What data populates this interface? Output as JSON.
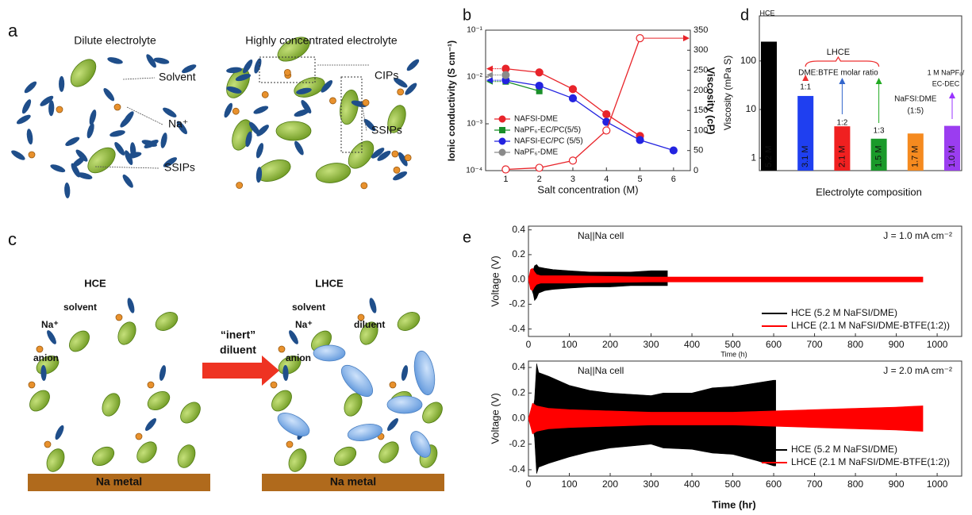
{
  "diagram_a": {
    "label": "a",
    "titles": [
      "Dilute electrolyte",
      "Highly concentrated electrolyte"
    ],
    "labels": [
      "Solvent",
      "Na⁺",
      "SSIPs",
      "CIPs",
      "SSIPs"
    ]
  },
  "diagram_c": {
    "label": "c",
    "titles": [
      "HCE",
      "LHCE"
    ],
    "left_labels": [
      "solvent",
      "Na⁺",
      "anion"
    ],
    "right_labels": [
      "solvent",
      "Na⁺",
      "diluent",
      "anion"
    ],
    "arrow_label": [
      "“inert”",
      "diluent"
    ],
    "substrate": [
      "Na metal",
      "Na metal"
    ]
  },
  "chart_data": [
    {
      "type": "line",
      "panel": "b",
      "xlabel": "Salt concentration (M)",
      "ylabel": "Ionic conductivity (S cm⁻¹)",
      "y2label": "Viscosity (cP)",
      "ylog": true,
      "x": [
        1,
        2,
        3,
        4,
        5,
        6
      ],
      "xlim": [
        0.4,
        6.5
      ],
      "xticks": [
        1,
        2,
        3,
        4,
        5,
        6
      ],
      "ylim": [
        0.0001,
        0.1
      ],
      "yticks": [
        {
          "value": 0.0001,
          "label": "10⁻⁴"
        },
        {
          "value": 0.001,
          "label": "10⁻³"
        },
        {
          "value": 0.01,
          "label": "10⁻²"
        },
        {
          "value": 0.1,
          "label": "10⁻¹"
        }
      ],
      "y2lim": [
        0,
        350
      ],
      "y2ticks": [
        0,
        50,
        100,
        150,
        200,
        250,
        300,
        350
      ],
      "series": [
        {
          "name": "NAFSI-DME",
          "color": "#e8242a",
          "marker": "circle",
          "values": [
            0.015,
            0.0125,
            0.0055,
            0.0016,
            0.00055,
            null
          ]
        },
        {
          "name": "NaPF₆-EC/PC(5/5)",
          "color": "#1a8f2a",
          "marker": "square",
          "values": [
            0.008,
            0.005,
            null,
            null,
            null,
            null
          ]
        },
        {
          "name": "NAFSI-EC/PC (5/5)",
          "color": "#2323e0",
          "marker": "circle",
          "values": [
            0.0085,
            0.0065,
            0.0035,
            0.0011,
            0.00045,
            0.00027
          ]
        },
        {
          "name": "NaPF₆-DME",
          "color": "#8a8a8a",
          "marker": "circle",
          "values": [
            0.011,
            null,
            null,
            null,
            null,
            null
          ]
        },
        {
          "color": "#e8242a",
          "marker": "open",
          "axis": "y2",
          "values": [
            3,
            7,
            25,
            100,
            330,
            null
          ]
        }
      ]
    },
    {
      "type": "bar",
      "panel": "d",
      "xlabel": "Electrolyte composition",
      "ylabel": "Viscosity (mPa S)",
      "ylog": true,
      "ylim": [
        0.55,
        850
      ],
      "yticks": [
        1,
        10,
        100
      ],
      "categories": [
        null,
        null,
        null,
        null,
        null,
        null
      ],
      "values": [
        250,
        19,
        4.5,
        2.5,
        3.2,
        4.6
      ],
      "colors": [
        "#000000",
        "#1f3ff0",
        "#f02020",
        "#1a9a2a",
        "#f58a1f",
        "#9b3df0"
      ],
      "bar_labels": [
        "5.2 M",
        "3.1 M",
        "2.1 M",
        "1.5 M",
        "1.7 M",
        "1.0 M"
      ],
      "annotations": [
        "HCE",
        "LHCE",
        "DME:BTFE molar ratio",
        "1:1",
        "1:2",
        "1:3",
        "NaFSI:DME",
        "(1:5)",
        "1 M NaPF₆/",
        "EC-DEC"
      ]
    },
    {
      "type": "range-area",
      "panel": "e",
      "xlabel": "Time (h)",
      "ylabel": "Voltage (V)",
      "xlim": [
        0,
        1060
      ],
      "xticks": [
        0,
        100,
        200,
        300,
        400,
        500,
        600,
        700,
        800,
        900,
        1000
      ],
      "ylim": [
        -0.46,
        0.43
      ],
      "yticks": [
        -0.4,
        -0.2,
        {
          "value": 0,
          "label": "0.0"
        },
        0.2,
        0.4
      ],
      "annotations": [
        "Na||Na cell",
        "J = 1.0 mA cm⁻²"
      ],
      "series": [
        {
          "name": "HCE (5.2 M NaFSI/DME)",
          "color": "#000000",
          "x": [
            3,
            8,
            12,
            15,
            20,
            25,
            40,
            60,
            100,
            150,
            200,
            250,
            300,
            340
          ],
          "upper": [
            0.0,
            0.05,
            0.08,
            0.11,
            0.12,
            0.1,
            0.09,
            0.08,
            0.07,
            0.06,
            0.06,
            0.06,
            0.07,
            0.07
          ],
          "lower": [
            0.0,
            -0.08,
            -0.12,
            -0.17,
            -0.15,
            -0.11,
            -0.09,
            -0.08,
            -0.07,
            -0.06,
            -0.06,
            -0.05,
            -0.05,
            -0.05
          ]
        },
        {
          "name": "LHCE (2.1 M NaFSI/DME-BTFE(1:2))",
          "color": "#ff0000",
          "x": [
            0,
            5,
            10,
            15,
            20,
            30,
            50,
            100,
            300,
            500,
            700,
            965
          ],
          "upper": [
            0.0,
            0.08,
            0.09,
            0.06,
            0.04,
            0.03,
            0.03,
            0.03,
            0.02,
            0.02,
            0.02,
            0.02
          ],
          "lower": [
            0.0,
            -0.08,
            -0.09,
            -0.06,
            -0.04,
            -0.03,
            -0.03,
            -0.03,
            -0.02,
            -0.02,
            -0.02,
            -0.02
          ]
        }
      ]
    },
    {
      "type": "range-area",
      "xlabel": "Time (hr)",
      "ylabel": "Voltage (V)",
      "xlim": [
        0,
        1060
      ],
      "xticks": [
        0,
        100,
        200,
        300,
        400,
        500,
        600,
        700,
        800,
        900,
        1000
      ],
      "ylim": [
        -0.45,
        0.45
      ],
      "yticks": [
        -0.4,
        -0.2,
        {
          "value": 0,
          "label": "0.0"
        },
        0.2,
        0.4
      ],
      "annotations": [
        "Na||Na cell",
        "J = 2.0 mA cm⁻²"
      ],
      "series": [
        {
          "name": "HCE (5.2 M NaFSI/DME)",
          "color": "#000000",
          "x": [
            10,
            15,
            20,
            25,
            50,
            100,
            150,
            200,
            300,
            330,
            400,
            450,
            500,
            560,
            600,
            605
          ],
          "upper": [
            0.05,
            0.15,
            0.43,
            0.36,
            0.33,
            0.26,
            0.22,
            0.2,
            0.18,
            0.2,
            0.2,
            0.24,
            0.25,
            0.28,
            0.3,
            0.3
          ],
          "lower": [
            -0.05,
            -0.15,
            -0.43,
            -0.38,
            -0.35,
            -0.3,
            -0.26,
            -0.23,
            -0.2,
            -0.23,
            -0.24,
            -0.27,
            -0.28,
            -0.33,
            -0.37,
            -0.37
          ]
        },
        {
          "name": "LHCE (2.1 M NaFSI/DME-BTFE(1:2))",
          "color": "#ff0000",
          "x": [
            0,
            10,
            20,
            50,
            100,
            200,
            300,
            400,
            500,
            600,
            700,
            800,
            900,
            965
          ],
          "upper": [
            0.0,
            0.12,
            0.1,
            0.08,
            0.07,
            0.06,
            0.05,
            0.05,
            0.05,
            0.06,
            0.07,
            0.08,
            0.09,
            0.1
          ],
          "lower": [
            0.0,
            -0.12,
            -0.1,
            -0.08,
            -0.07,
            -0.06,
            -0.05,
            -0.05,
            -0.05,
            -0.06,
            -0.07,
            -0.08,
            -0.09,
            -0.1
          ]
        }
      ]
    }
  ]
}
